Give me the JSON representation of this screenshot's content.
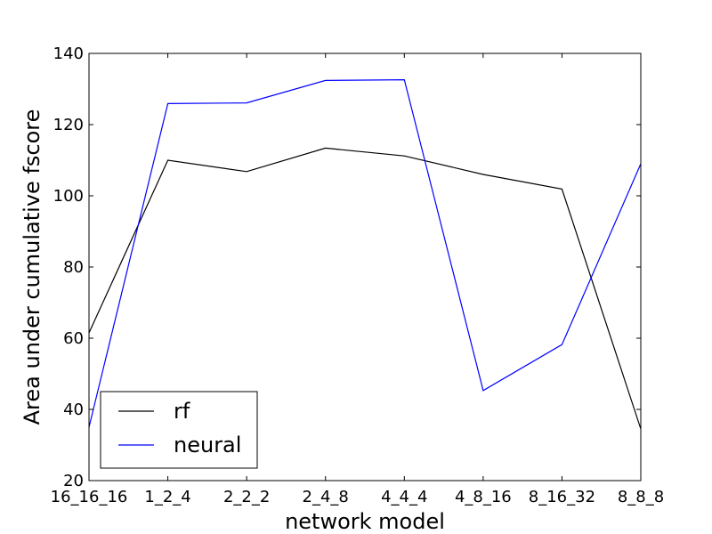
{
  "chart_data": {
    "type": "line",
    "title": "",
    "xlabel": "network model",
    "ylabel": "Area under cumulative fscore",
    "categories": [
      "16_16_16",
      "1_2_4",
      "2_2_2",
      "2_4_8",
      "4_4_4",
      "4_8_16",
      "8_16_32",
      "8_8_8"
    ],
    "ylim": [
      20,
      140
    ],
    "yticks": [
      20,
      40,
      60,
      80,
      100,
      120,
      140
    ],
    "grid": false,
    "legend_position": "lower-left",
    "series": [
      {
        "name": "rf",
        "color": "#000000",
        "values": [
          61.5,
          110.0,
          106.8,
          113.4,
          111.2,
          106.0,
          101.9,
          34.5
        ]
      },
      {
        "name": "neural",
        "color": "#0000ff",
        "values": [
          35.0,
          125.9,
          126.1,
          132.4,
          132.6,
          45.3,
          58.2,
          109.0
        ]
      }
    ]
  }
}
